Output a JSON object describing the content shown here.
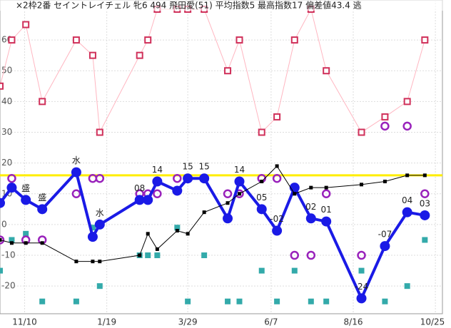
{
  "chart_data": {
    "type": "line",
    "title": "×2枠2番 セイントレイチェル 牝6 494 飛田愛(51) 平均指数5 最高指数17 偏差値43.4 逃",
    "xlim": [
      -21,
      356
    ],
    "ylim": [
      -29,
      73
    ],
    "xticks": [
      {
        "value": 0,
        "label": "11/10"
      },
      {
        "value": 70,
        "label": "1/19"
      },
      {
        "value": 139,
        "label": "3/29"
      },
      {
        "value": 210,
        "label": "6/7"
      },
      {
        "value": 280,
        "label": "8/16"
      },
      {
        "value": 350,
        "label": "10/25"
      }
    ],
    "yticks": [
      60,
      50,
      40,
      30,
      20,
      10,
      0,
      -10,
      -20
    ],
    "grid": true,
    "reference_line": {
      "value": 16,
      "color": "#ffee00"
    },
    "x": [
      -21,
      -11,
      1,
      15,
      44,
      58,
      64,
      98,
      105,
      113,
      130,
      139,
      153,
      173,
      183,
      202,
      215,
      230,
      244,
      257,
      287,
      307,
      326,
      341
    ],
    "series": [
      {
        "name": "upper",
        "style": "pink",
        "color": "#ffb6c1",
        "values": [
          45,
          60,
          65,
          40,
          60,
          55,
          30,
          55,
          60,
          70,
          70,
          70,
          70,
          50,
          60,
          30,
          35,
          60,
          70,
          50,
          30,
          35,
          40,
          60
        ]
      },
      {
        "name": "lower",
        "style": "teal",
        "color": "#33aaaa",
        "values": [
          -15,
          -5,
          -3,
          -25,
          -25,
          -1,
          -20,
          -10,
          -10,
          -10,
          -1,
          -25,
          -10,
          -25,
          -25,
          -15,
          -25,
          -15,
          -25,
          -25,
          -15,
          -25,
          -20,
          -5
        ]
      },
      {
        "name": "other",
        "style": "purple",
        "color": "#9922bb",
        "values": [
          -5,
          15,
          -5,
          -5,
          10,
          15,
          15,
          10,
          10,
          10,
          15,
          null,
          null,
          10,
          10,
          15,
          15,
          -10,
          -10,
          10,
          -10,
          32,
          32,
          10
        ]
      },
      {
        "name": "index",
        "style": "main",
        "color": "#1a1ae6",
        "values": [
          7,
          12,
          8,
          5,
          17,
          -4,
          0,
          8,
          8,
          14,
          11,
          15,
          15,
          2,
          14,
          5,
          -2,
          12,
          2,
          1,
          -24,
          -7,
          4,
          3
        ],
        "value_labels": [
          null,
          null,
          "盛",
          "盛",
          "水",
          null,
          "水",
          "08",
          null,
          "14",
          null,
          "15",
          "15",
          null,
          "14",
          "05",
          "-02",
          null,
          "02",
          "01",
          "-24",
          "-07",
          "04",
          "03"
        ]
      },
      {
        "name": "average",
        "style": "black",
        "color": "#000000",
        "values": [
          -5,
          -6,
          -6,
          -6,
          -12,
          -12,
          -12,
          -10,
          -3,
          -8,
          -2,
          -3,
          4,
          7,
          10,
          14,
          19,
          10,
          12,
          12,
          13,
          14,
          16,
          16
        ]
      }
    ]
  }
}
